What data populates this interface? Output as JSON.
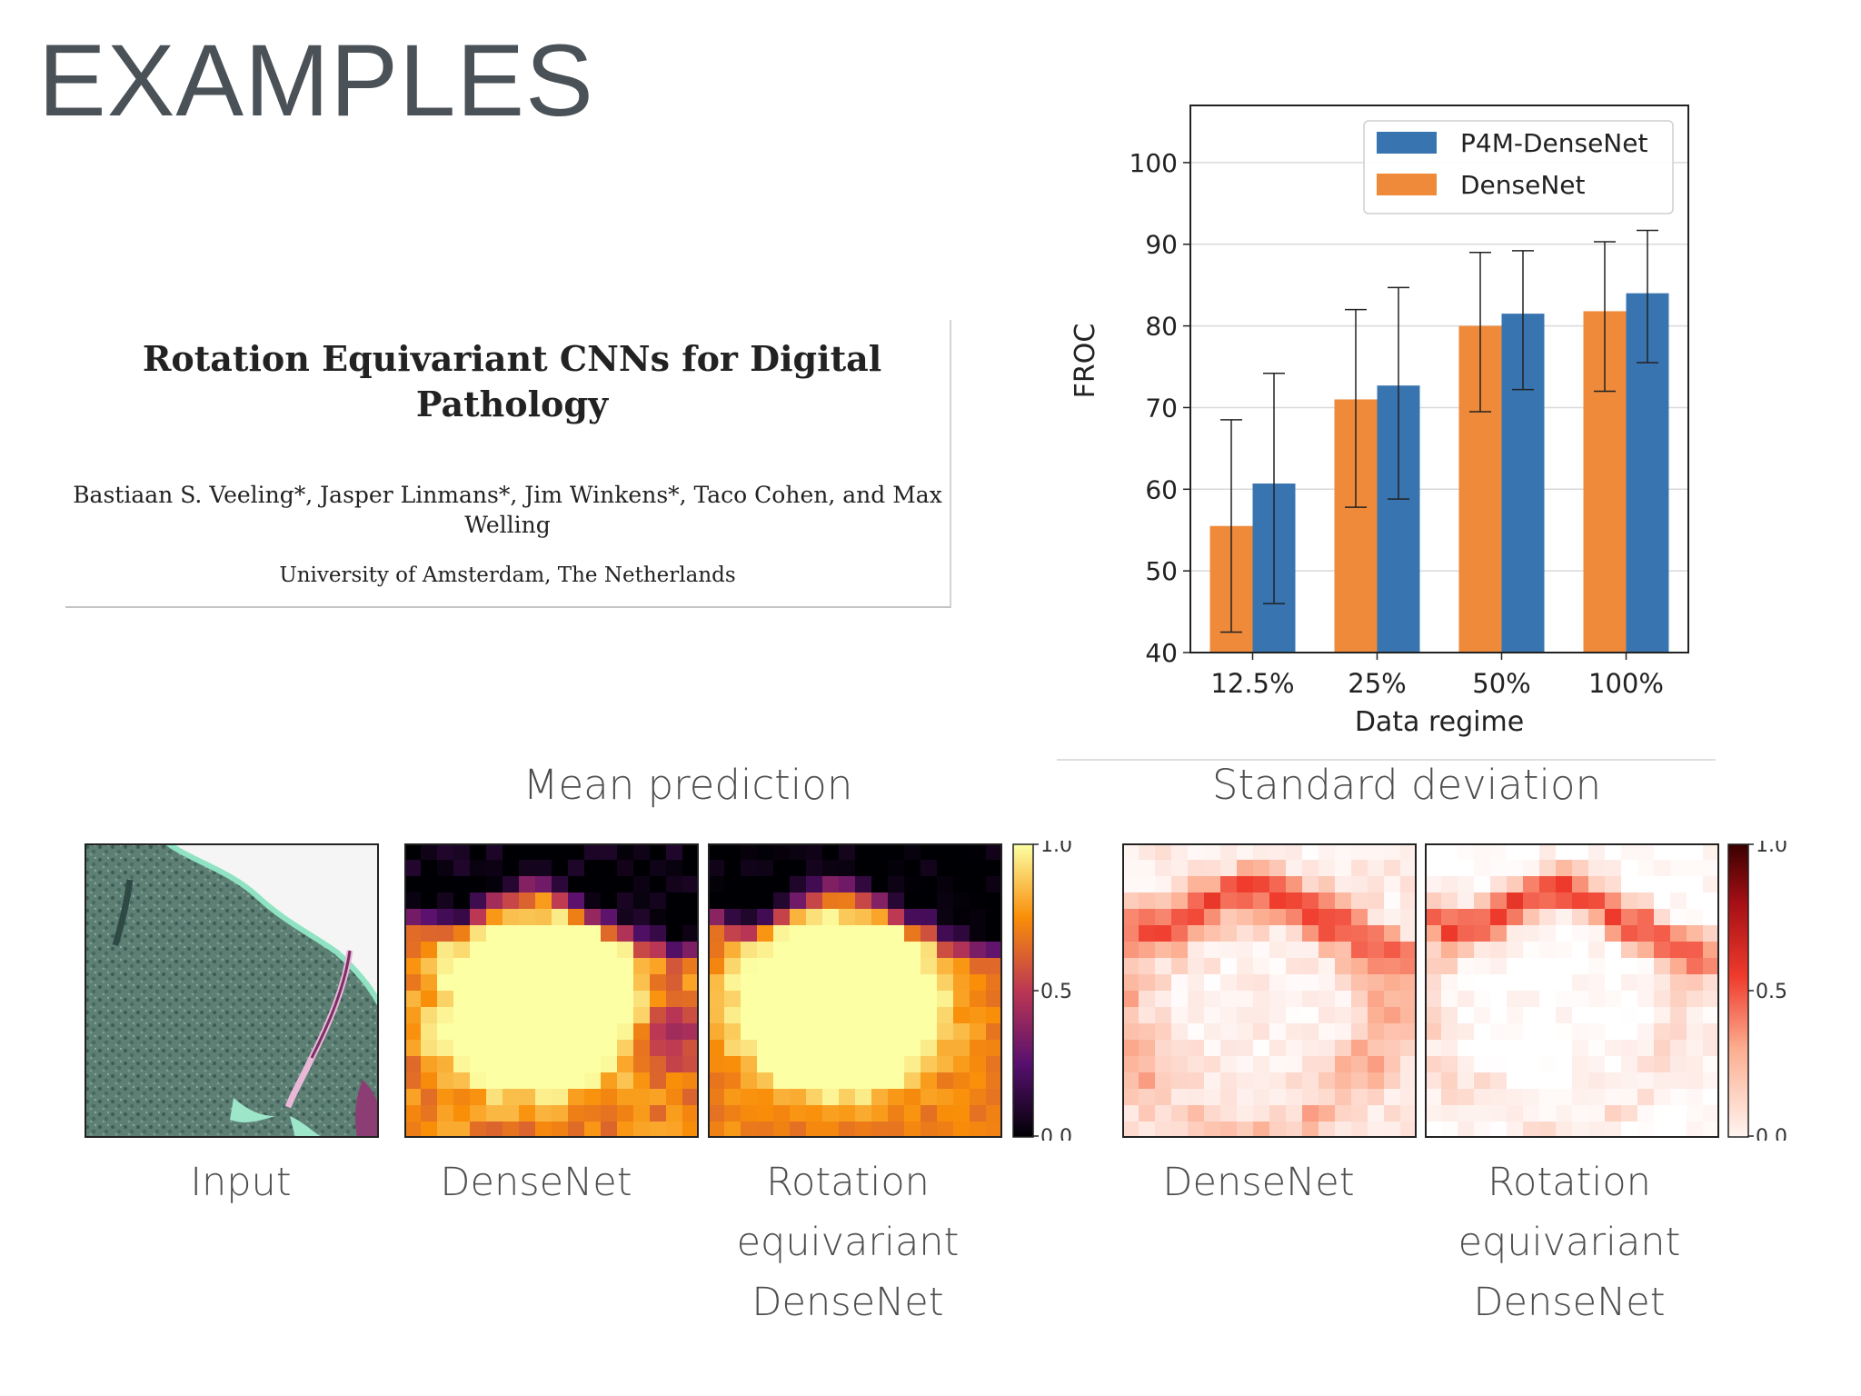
{
  "slide": {
    "title": "EXAMPLES"
  },
  "paper": {
    "title": "Rotation Equivariant CNNs for Digital Pathology",
    "authors": "Bastiaan S. Veeling*, Jasper Linmans*, Jim Winkens*, Taco Cohen, and Max Welling",
    "affiliation": "University of Amsterdam, The Netherlands"
  },
  "chart_data": {
    "type": "bar",
    "categories": [
      "12.5%",
      "25%",
      "50%",
      "100%"
    ],
    "series": [
      {
        "name": "DenseNet",
        "color": "#ee8a3a",
        "values": [
          55.5,
          71,
          80,
          81.8
        ],
        "err_low": [
          42.5,
          57.8,
          69.5,
          72
        ],
        "err_high": [
          68.5,
          82,
          89,
          90.3
        ]
      },
      {
        "name": "P4M-DenseNet",
        "color": "#3874b0",
        "values": [
          60.7,
          72.7,
          81.5,
          84
        ],
        "err_low": [
          46,
          58.8,
          72.2,
          75.5
        ],
        "err_high": [
          74.2,
          84.7,
          89.2,
          91.7
        ]
      }
    ],
    "legend_order": [
      "P4M-DenseNet",
      "DenseNet"
    ],
    "xlabel": "Data regime",
    "ylabel": "FROC",
    "ylim": [
      40,
      107
    ],
    "yticks": [
      40,
      50,
      60,
      70,
      80,
      90,
      100
    ],
    "grid": true,
    "legend_position": "top-right"
  },
  "figure": {
    "mean_label": "Mean prediction",
    "std_label": "Standard deviation",
    "captions": {
      "input": "Input",
      "mean_densenet": "DenseNet",
      "mean_rot": "Rotation\nequivariant\nDenseNet",
      "std_densenet": "DenseNet",
      "std_rot": "Rotation\nequivariant\nDenseNet"
    },
    "colorbar_ticks": [
      "1.0",
      "0.5",
      "0.0"
    ]
  }
}
